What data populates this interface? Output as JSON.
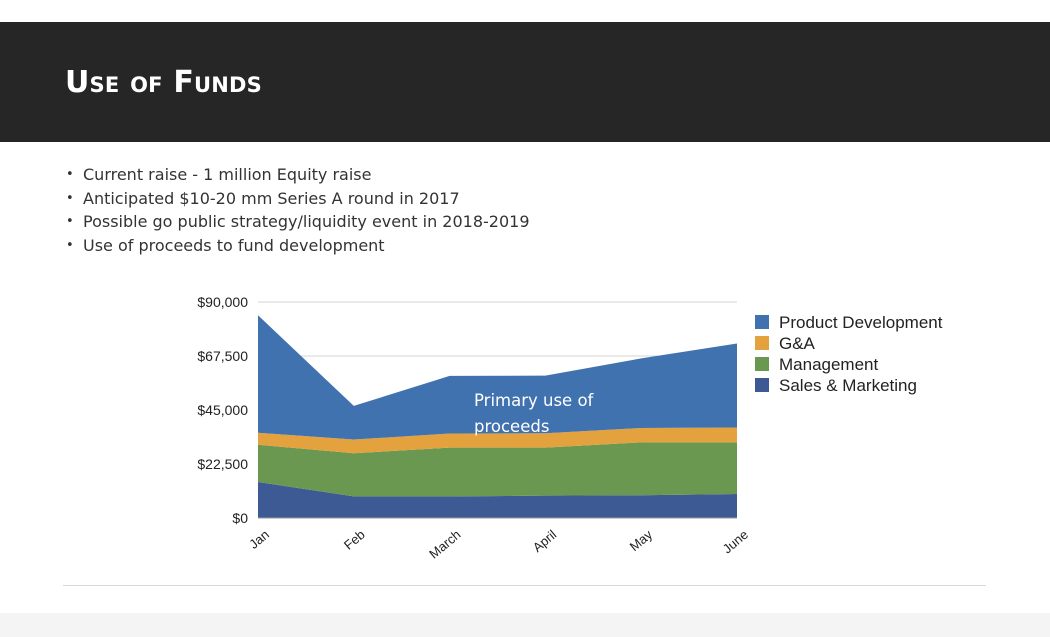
{
  "slide": {
    "title": "Use of Funds",
    "bullets": [
      "Current raise - 1 million Equity raise",
      "Anticipated $10-20 mm Series A round in 2017",
      "Possible go public strategy/liquidity event in 2018-2019",
      "Use of proceeds to fund development"
    ]
  },
  "chart_data": {
    "type": "area",
    "stacked": true,
    "categories": [
      "Jan",
      "Feb",
      "March",
      "April",
      "May",
      "June"
    ],
    "y_ticks": [
      "$0",
      "$22,500",
      "$45,000",
      "$67,500",
      "$90,000"
    ],
    "ylim": [
      0,
      90000
    ],
    "grid": true,
    "legend_position": "right",
    "series": [
      {
        "name": "Sales & Marketing",
        "color": "#3d5a94",
        "values": [
          15000,
          9000,
          9000,
          9300,
          9500,
          10000
        ]
      },
      {
        "name": "Management",
        "color": "#6a9850",
        "values": [
          15500,
          18000,
          20300,
          20000,
          22000,
          21500
        ]
      },
      {
        "name": "G&A",
        "color": "#e3a23d",
        "values": [
          5000,
          5700,
          5900,
          6000,
          6000,
          6200
        ]
      },
      {
        "name": "Product Development",
        "color": "#4172b0",
        "values": [
          49000,
          14000,
          24000,
          24000,
          29000,
          35000
        ]
      }
    ],
    "legend_order": [
      "Product Development",
      "G&A",
      "Management",
      "Sales & Marketing"
    ],
    "annotation": "Primary use of proceeds"
  }
}
